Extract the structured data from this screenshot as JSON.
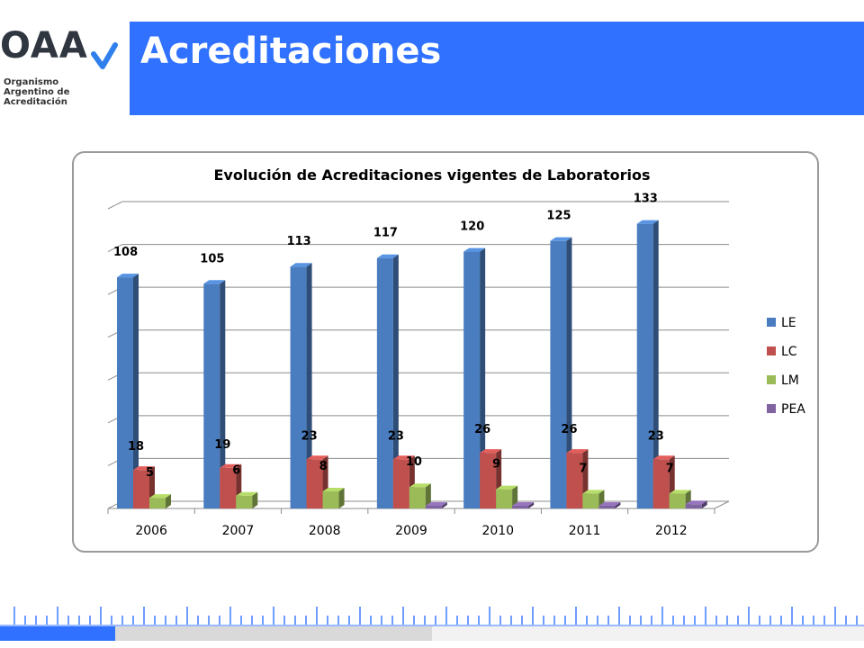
{
  "logo": {
    "mark": "OAA",
    "subtitle_lines": [
      "Organismo",
      "Argentino de",
      "Acreditación"
    ]
  },
  "slide": {
    "title": "Acreditaciones"
  },
  "colors": {
    "title_bar": "#3072ff",
    "LE": "#4a7dc0",
    "LC": "#c0504d",
    "LM": "#9bbb59",
    "PEA": "#8064a2"
  },
  "chart_data": {
    "type": "bar",
    "title": "Evolución de Acreditaciones vigentes  de Laboratorios",
    "xlabel": "",
    "ylabel": "",
    "categories": [
      "2006",
      "2007",
      "2008",
      "2009",
      "2010",
      "2011",
      "2012"
    ],
    "series": [
      {
        "name": "LE",
        "values": [
          108,
          105,
          113,
          117,
          120,
          125,
          133
        ]
      },
      {
        "name": "LC",
        "values": [
          18,
          19,
          23,
          23,
          26,
          26,
          23
        ]
      },
      {
        "name": "LM",
        "values": [
          5,
          6,
          8,
          10,
          9,
          7,
          7
        ]
      },
      {
        "name": "PEA",
        "values": [
          0,
          0,
          0,
          1,
          1,
          1,
          2
        ]
      }
    ],
    "data_labels_shown": {
      "LE": [
        "108",
        "105",
        "113",
        "117",
        "120",
        "125",
        "133"
      ],
      "LC": [
        "18",
        "19",
        "23",
        "23",
        "26",
        "26",
        "23"
      ],
      "LM": [
        "5",
        "6",
        "8",
        "10",
        "9",
        "7",
        "7"
      ]
    },
    "ylim": [
      0,
      140
    ],
    "legend": "right",
    "grid": true
  }
}
